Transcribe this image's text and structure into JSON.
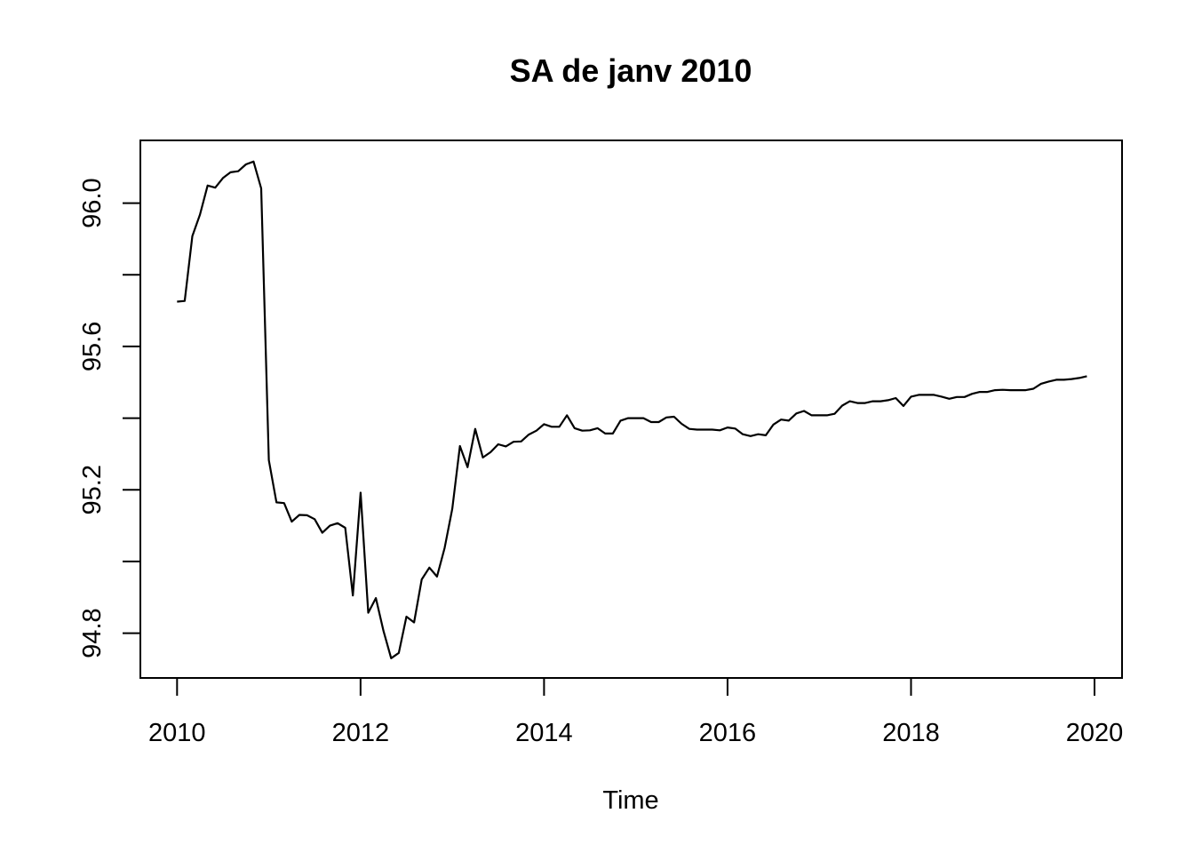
{
  "chart_data": {
    "type": "line",
    "title": "SA de janv 2010",
    "xlabel": "Time",
    "ylabel": "",
    "xlim": [
      2009.6,
      2020.3
    ],
    "ylim": [
      94.675,
      96.175
    ],
    "x_ticks": [
      2010,
      2012,
      2014,
      2016,
      2018,
      2020
    ],
    "x_tick_labels": [
      "2010",
      "2012",
      "2014",
      "2016",
      "2018",
      "2020"
    ],
    "y_ticks": [
      94.8,
      95.0,
      95.2,
      95.4,
      95.6,
      95.8,
      96.0
    ],
    "y_tick_labels": [
      "94.8",
      "",
      "95.2",
      "",
      "95.6",
      "",
      "96.0"
    ],
    "grid": false,
    "start": 2010,
    "frequency": 12,
    "series": [
      {
        "values": [
          95.725,
          95.727,
          95.908,
          95.968,
          96.049,
          96.043,
          96.07,
          96.086,
          96.089,
          96.108,
          96.116,
          96.041,
          95.283,
          95.165,
          95.163,
          95.111,
          95.13,
          95.129,
          95.118,
          95.08,
          95.1,
          95.107,
          95.094,
          94.905,
          95.192,
          94.857,
          94.898,
          94.806,
          94.73,
          94.745,
          94.846,
          94.83,
          94.95,
          94.983,
          94.958,
          95.038,
          95.147,
          95.322,
          95.263,
          95.37,
          95.29,
          95.305,
          95.327,
          95.321,
          95.334,
          95.335,
          95.354,
          95.365,
          95.383,
          95.376,
          95.376,
          95.408,
          95.372,
          95.365,
          95.366,
          95.372,
          95.357,
          95.357,
          95.393,
          95.4,
          95.4,
          95.4,
          95.389,
          95.389,
          95.402,
          95.404,
          95.384,
          95.37,
          95.368,
          95.368,
          95.368,
          95.366,
          95.374,
          95.371,
          95.355,
          95.35,
          95.355,
          95.352,
          95.382,
          95.396,
          95.393,
          95.413,
          95.42,
          95.408,
          95.408,
          95.408,
          95.412,
          95.435,
          95.447,
          95.442,
          95.442,
          95.447,
          95.447,
          95.45,
          95.456,
          95.434,
          95.46,
          95.465,
          95.465,
          95.465,
          95.46,
          95.454,
          95.459,
          95.459,
          95.468,
          95.473,
          95.473,
          95.478,
          95.479,
          95.478,
          95.478,
          95.478,
          95.482,
          95.496,
          95.502,
          95.507,
          95.507,
          95.509,
          95.512,
          95.517
        ]
      }
    ]
  }
}
